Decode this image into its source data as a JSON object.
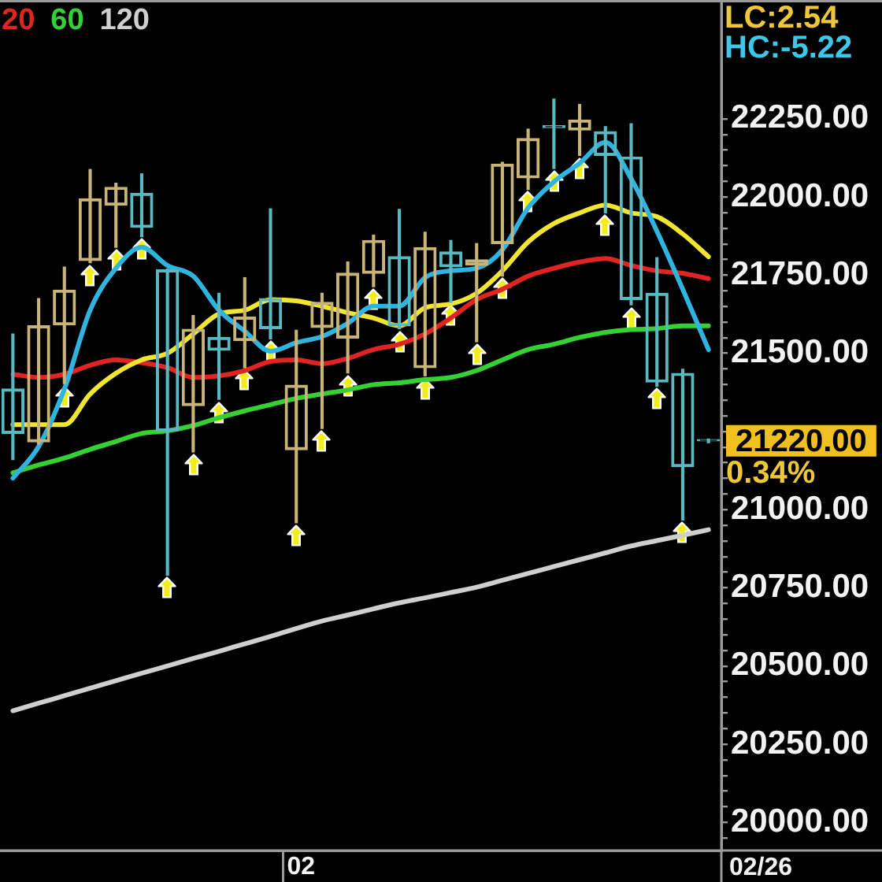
{
  "chart_data": {
    "type": "candlestick",
    "categories": [
      null,
      null,
      null,
      null,
      null,
      null,
      null,
      null,
      null,
      null,
      null,
      "02",
      null,
      null,
      null,
      null,
      null,
      null,
      null,
      null,
      null,
      null,
      null,
      null,
      null,
      null,
      null,
      null
    ],
    "ohlc": [
      [
        21386,
        21562,
        21160,
        21244
      ],
      [
        21217,
        21675,
        21210,
        21588
      ],
      [
        21591,
        21776,
        21403,
        21702
      ],
      [
        21797,
        22088,
        21790,
        21994
      ],
      [
        21974,
        22044,
        21839,
        22031
      ],
      [
        22012,
        22074,
        21873,
        21903
      ],
      [
        21767,
        21770,
        20790,
        21252
      ],
      [
        21333,
        21621,
        21185,
        21577
      ],
      [
        21551,
        21692,
        21353,
        21510
      ],
      [
        21541,
        21742,
        21454,
        21616
      ],
      [
        21675,
        21962,
        21546,
        21579
      ],
      [
        21192,
        21574,
        20958,
        21398
      ],
      [
        21583,
        21692,
        21260,
        21663
      ],
      [
        21549,
        21792,
        21437,
        21756
      ],
      [
        21756,
        21878,
        21713,
        21861
      ],
      [
        21809,
        21960,
        21579,
        21588
      ],
      [
        21454,
        21887,
        21428,
        21838
      ],
      [
        21824,
        21861,
        21663,
        21777
      ],
      [
        21782,
        21851,
        21537,
        21799
      ],
      [
        21851,
        22111,
        21747,
        22105
      ],
      [
        22061,
        22217,
        22024,
        22187
      ],
      [
        22228,
        22313,
        22091,
        22222
      ],
      [
        22214,
        22296,
        22133,
        22246
      ],
      [
        22209,
        22225,
        21949,
        22133
      ],
      [
        22128,
        22234,
        21655,
        21672
      ],
      [
        21692,
        21806,
        21395,
        21408
      ],
      [
        21436,
        21449,
        20967,
        21138
      ],
      [
        21224,
        21226,
        21214,
        21220
      ]
    ],
    "colors": [
      "#5cb8c0",
      "#c8b478",
      "#c8b478",
      "#c8b478",
      "#c8b478",
      "#5cb8c0",
      "#5cb8c0",
      "#c8b478",
      "#5cb8c0",
      "#c8b478",
      "#5cb8c0",
      "#c8b478",
      "#c8b478",
      "#c8b478",
      "#c8b478",
      "#5cb8c0",
      "#c8b478",
      "#5cb8c0",
      "#c8b478",
      "#c8b478",
      "#c8b478",
      "#5cb8c0",
      "#c8b478",
      "#5cb8c0",
      "#5cb8c0",
      "#5cb8c0",
      "#5cb8c0",
      "#5cb8c0"
    ],
    "series": [
      {
        "type": "line",
        "color": "#2fb4e0",
        "values": [
          21101,
          21202,
          21386,
          21638,
          21772,
          21839,
          21781,
          21747,
          21638,
          21571,
          21507,
          21534,
          21554,
          21596,
          21651,
          21651,
          21742,
          21764,
          21772,
          21831,
          21965,
          22049,
          22108,
          22175,
          22058,
          21890,
          21705,
          21512
        ]
      },
      {
        "type": "line",
        "color": "#f0e632",
        "values": [
          21272,
          21272,
          21272,
          21370,
          21436,
          21479,
          21500,
          21562,
          21626,
          21638,
          21672,
          21668,
          21651,
          21630,
          21613,
          21588,
          21646,
          21658,
          21692,
          21764,
          21856,
          21915,
          21949,
          21974,
          21949,
          21937,
          21882,
          21809
        ]
      },
      {
        "type": "line",
        "name": "20",
        "color": "#e02424",
        "values": [
          21433,
          21423,
          21433,
          21462,
          21479,
          21470,
          21454,
          21423,
          21428,
          21445,
          21474,
          21479,
          21467,
          21484,
          21512,
          21529,
          21562,
          21613,
          21672,
          21705,
          21747,
          21772,
          21792,
          21803,
          21781,
          21764,
          21756,
          21739
        ]
      },
      {
        "type": "line",
        "name": "60",
        "color": "#34d034",
        "values": [
          21118,
          21143,
          21165,
          21193,
          21218,
          21244,
          21252,
          21269,
          21294,
          21316,
          21336,
          21356,
          21370,
          21383,
          21400,
          21406,
          21416,
          21423,
          21445,
          21479,
          21512,
          21529,
          21551,
          21567,
          21576,
          21579,
          21588,
          21588
        ]
      },
      {
        "type": "line",
        "name": "120",
        "color": "#cfcfcf",
        "values": [
          20357,
          20381,
          20405,
          20429,
          20453,
          20477,
          20500,
          20524,
          20547,
          20571,
          20595,
          20620,
          20644,
          20663,
          20683,
          20702,
          20718,
          20735,
          20752,
          20774,
          20796,
          20818,
          20840,
          20862,
          20884,
          20901,
          20918,
          20936
        ]
      }
    ],
    "ylim": [
      19910,
      22630
    ],
    "yticks": [
      {
        "value": 19950,
        "label": null
      },
      {
        "value": 20000,
        "label": "20000.00"
      },
      {
        "value": 20050,
        "label": null
      },
      {
        "value": 20100,
        "label": null
      },
      {
        "value": 20150,
        "label": null
      },
      {
        "value": 20200,
        "label": null
      },
      {
        "value": 20250,
        "label": "20250.00"
      },
      {
        "value": 20300,
        "label": null
      },
      {
        "value": 20350,
        "label": null
      },
      {
        "value": 20400,
        "label": null
      },
      {
        "value": 20450,
        "label": null
      },
      {
        "value": 20500,
        "label": "20500.00"
      },
      {
        "value": 20550,
        "label": null
      },
      {
        "value": 20600,
        "label": null
      },
      {
        "value": 20650,
        "label": null
      },
      {
        "value": 20700,
        "label": null
      },
      {
        "value": 20750,
        "label": "20750.00"
      },
      {
        "value": 20800,
        "label": null
      },
      {
        "value": 20850,
        "label": null
      },
      {
        "value": 20900,
        "label": null
      },
      {
        "value": 20950,
        "label": null
      },
      {
        "value": 21000,
        "label": "21000.00"
      },
      {
        "value": 21050,
        "label": null
      },
      {
        "value": 21100,
        "label": null
      },
      {
        "value": 21150,
        "label": null
      },
      {
        "value": 21200,
        "label": null
      },
      {
        "value": 21250,
        "label": null
      },
      {
        "value": 21300,
        "label": null
      },
      {
        "value": 21350,
        "label": null
      },
      {
        "value": 21400,
        "label": null
      },
      {
        "value": 21450,
        "label": null
      },
      {
        "value": 21500,
        "label": "21500.00"
      },
      {
        "value": 21550,
        "label": null
      },
      {
        "value": 21600,
        "label": null
      },
      {
        "value": 21650,
        "label": null
      },
      {
        "value": 21700,
        "label": null
      },
      {
        "value": 21750,
        "label": "21750.00"
      },
      {
        "value": 21800,
        "label": null
      },
      {
        "value": 21850,
        "label": null
      },
      {
        "value": 21900,
        "label": null
      },
      {
        "value": 21950,
        "label": null
      },
      {
        "value": 22000,
        "label": "22000.00"
      },
      {
        "value": 22050,
        "label": null
      },
      {
        "value": 22100,
        "label": null
      },
      {
        "value": 22150,
        "label": null
      },
      {
        "value": 22200,
        "label": null
      },
      {
        "value": 22250,
        "label": "22250.00"
      }
    ],
    "legend": "top left",
    "annotations": [
      "LC:2.54",
      "HC:-5.22",
      "21220.00",
      "0.34%",
      "02/26"
    ]
  }
}
